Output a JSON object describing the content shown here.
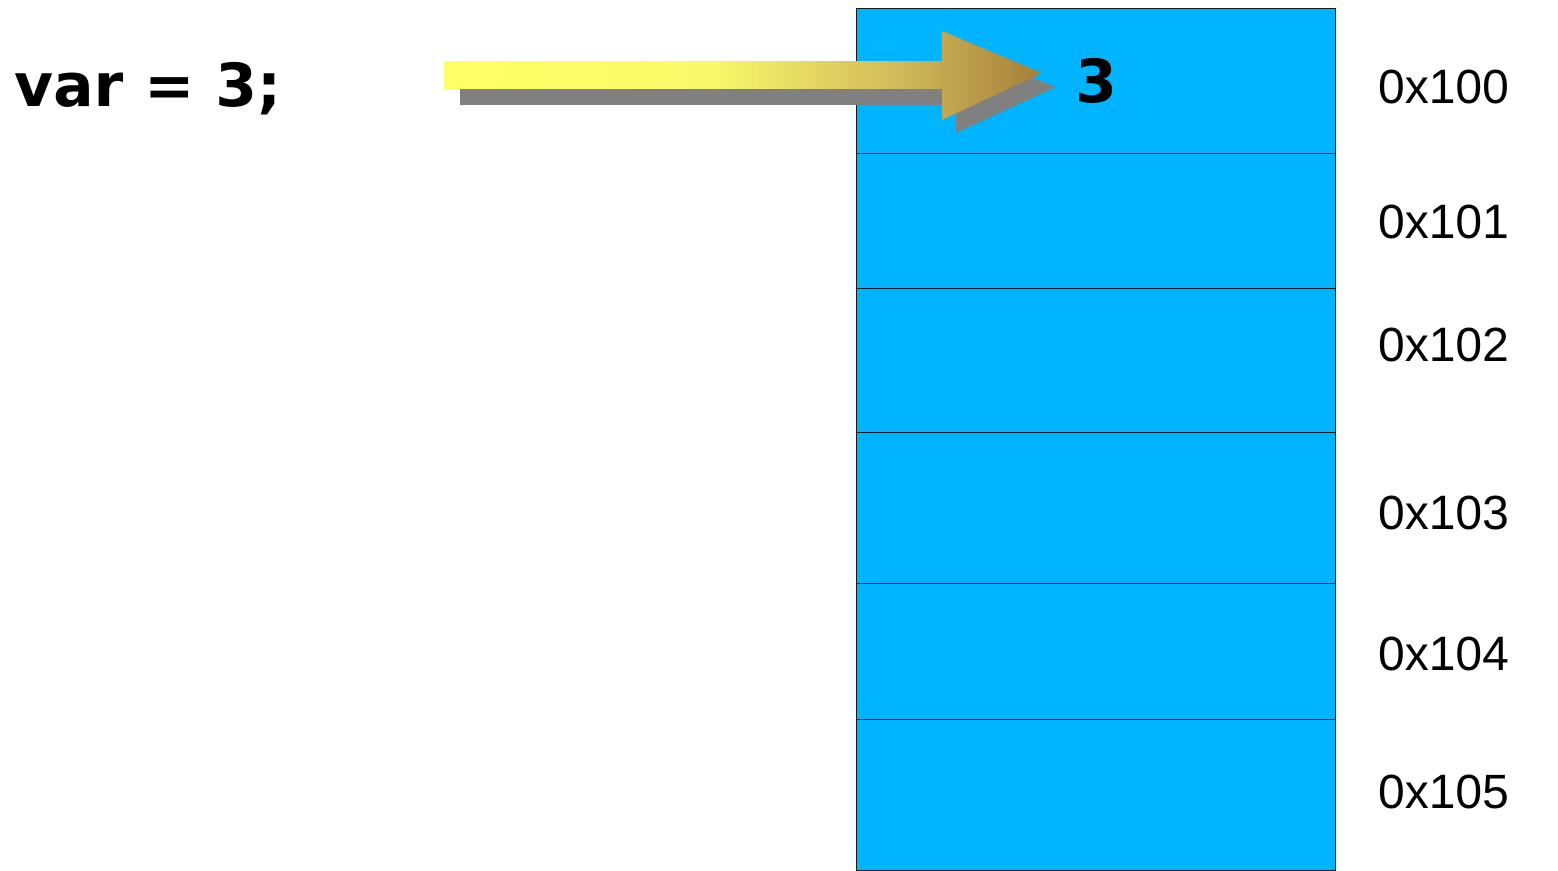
{
  "code_statement": "var = 3;",
  "colors": {
    "cell_fill": "#00b4ff",
    "cell_border": "#1a1a1a",
    "arrow_start": "#ffff66",
    "arrow_end": "#a67f3a",
    "arrow_shadow": "#808080"
  },
  "memory": {
    "cells": [
      {
        "value": "3",
        "address": "0x100"
      },
      {
        "value": "",
        "address": "0x101"
      },
      {
        "value": "",
        "address": "0x102"
      },
      {
        "value": "",
        "address": "0x103"
      },
      {
        "value": "",
        "address": "0x104"
      },
      {
        "value": "",
        "address": "0x105"
      }
    ]
  },
  "arrow": {
    "icon": "arrow-right-icon",
    "from": "code_statement",
    "to": "memory.cells.0"
  }
}
